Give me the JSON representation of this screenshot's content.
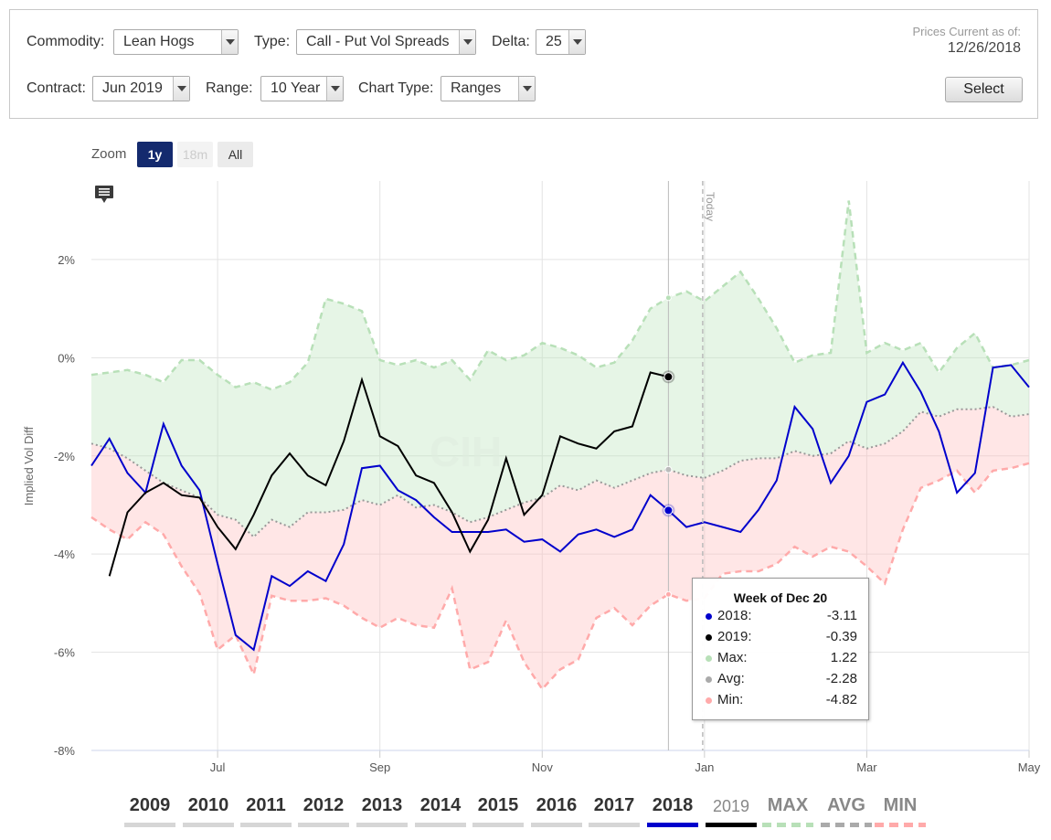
{
  "controls": {
    "commodity_label": "Commodity:",
    "commodity_value": "Lean Hogs",
    "type_label": "Type:",
    "type_value": "Call - Put Vol Spreads",
    "delta_label": "Delta:",
    "delta_value": "25",
    "contract_label": "Contract:",
    "contract_value": "Jun 2019",
    "range_label": "Range:",
    "range_value": "10 Year",
    "charttype_label": "Chart Type:",
    "charttype_value": "Ranges",
    "prices_label": "Prices Current as of:",
    "prices_date": "12/26/2018",
    "select_label": "Select"
  },
  "zoom": {
    "label": "Zoom",
    "options": [
      "1y",
      "18m",
      "All"
    ]
  },
  "chart_data": {
    "type": "line",
    "ylabel": "Implied Vol Diff",
    "ylim": [
      -8,
      3.6
    ],
    "yticks": [
      2,
      0,
      -2,
      -4,
      -6,
      -8
    ],
    "ytick_labels": [
      "2%",
      "0%",
      "-2%",
      "-4%",
      "-6%",
      "-8%"
    ],
    "x_tick_labels": [
      "Jul",
      "Sep",
      "Nov",
      "Jan",
      "Mar",
      "May"
    ],
    "today_label": "Today",
    "grid": true,
    "weeks": 53,
    "week_index_of_ticks": [
      7,
      16,
      25,
      34,
      43,
      52
    ],
    "today_week": 33,
    "bands": {
      "max": [
        -0.35,
        -0.3,
        -0.25,
        -0.35,
        -0.5,
        -0.05,
        -0.05,
        -0.35,
        -0.6,
        -0.5,
        -0.65,
        -0.5,
        -0.1,
        1.2,
        1.1,
        0.95,
        -0.05,
        -0.15,
        -0.05,
        -0.2,
        -0.05,
        -0.45,
        0.15,
        -0.05,
        0.05,
        0.3,
        0.2,
        0.05,
        -0.2,
        -0.1,
        0.35,
        1.0,
        1.22,
        1.35,
        1.15,
        1.45,
        1.75,
        1.2,
        0.6,
        -0.1,
        0.05,
        0.1,
        3.2,
        0.1,
        0.3,
        0.15,
        0.3,
        -0.3,
        0.2,
        0.5,
        -0.2,
        -0.15,
        -0.05
      ],
      "avg": [
        -1.75,
        -1.85,
        -2.05,
        -2.3,
        -2.55,
        -2.7,
        -2.85,
        -3.2,
        -3.3,
        -3.65,
        -3.3,
        -3.45,
        -3.15,
        -3.15,
        -3.1,
        -2.9,
        -3.0,
        -2.8,
        -3.05,
        -3.0,
        -3.15,
        -3.35,
        -3.25,
        -3.1,
        -2.95,
        -2.85,
        -2.6,
        -2.7,
        -2.5,
        -2.65,
        -2.5,
        -2.35,
        -2.28,
        -2.4,
        -2.45,
        -2.3,
        -2.1,
        -2.05,
        -2.05,
        -1.9,
        -2.0,
        -1.95,
        -1.7,
        -1.85,
        -1.75,
        -1.5,
        -1.1,
        -1.2,
        -1.05,
        -1.05,
        -1.0,
        -1.2,
        -1.15
      ],
      "min": [
        -3.25,
        -3.5,
        -3.7,
        -3.35,
        -3.6,
        -4.25,
        -4.8,
        -5.95,
        -5.65,
        -6.45,
        -4.85,
        -4.95,
        -4.95,
        -4.9,
        -5.05,
        -5.3,
        -5.5,
        -5.3,
        -5.45,
        -5.5,
        -4.7,
        -6.35,
        -6.2,
        -5.35,
        -6.2,
        -6.75,
        -6.35,
        -6.15,
        -5.3,
        -5.1,
        -5.45,
        -5.05,
        -4.82,
        -4.95,
        -4.9,
        -4.4,
        -4.35,
        -4.35,
        -4.2,
        -3.85,
        -4.05,
        -3.85,
        -3.95,
        -4.25,
        -4.6,
        -3.5,
        -2.65,
        -2.5,
        -2.3,
        -2.75,
        -2.3,
        -2.25,
        -2.15
      ]
    },
    "series": [
      {
        "name": "2018",
        "color": "#0000cc",
        "values": [
          -2.2,
          -1.65,
          -2.35,
          -2.75,
          -1.35,
          -2.2,
          -2.7,
          -4.2,
          -5.65,
          -5.95,
          -4.45,
          -4.65,
          -4.35,
          -4.55,
          -3.8,
          -2.25,
          -2.2,
          -2.7,
          -2.9,
          -3.25,
          -3.55,
          -3.55,
          -3.55,
          -3.5,
          -3.75,
          -3.7,
          -3.95,
          -3.6,
          -3.5,
          -3.65,
          -3.5,
          -2.8,
          -3.11,
          -3.45,
          -3.35,
          -3.45,
          -3.55,
          -3.1,
          -2.5,
          -1.0,
          -1.45,
          -2.55,
          -2.0,
          -0.9,
          -0.75,
          -0.1,
          -0.7,
          -1.5,
          -2.75,
          -2.35,
          -0.2,
          -0.15,
          -0.6
        ]
      },
      {
        "name": "2019",
        "color": "#000000",
        "values": [
          null,
          -4.45,
          -3.15,
          -2.75,
          -2.55,
          -2.8,
          -2.85,
          -3.45,
          -3.9,
          -3.2,
          -2.4,
          -1.95,
          -2.4,
          -2.6,
          -1.7,
          -0.45,
          -1.6,
          -1.8,
          -2.4,
          -2.55,
          -3.15,
          -3.95,
          -3.3,
          -2.05,
          -3.2,
          -2.8,
          -1.6,
          -1.75,
          -1.85,
          -1.5,
          -1.4,
          -0.3,
          -0.39,
          null,
          null,
          null,
          null,
          null,
          null,
          null,
          null,
          null,
          null,
          null,
          null,
          null,
          null,
          null,
          null,
          null,
          null,
          null,
          null
        ]
      }
    ],
    "tooltip": {
      "title": "Week of Dec 20",
      "rows": [
        {
          "label": "2018:",
          "value": "-3.11",
          "color": "#0000cc"
        },
        {
          "label": "2019:",
          "value": "-0.39",
          "color": "#000000"
        },
        {
          "label": "Max:",
          "value": "1.22",
          "color": "#b8e0b8"
        },
        {
          "label": "Avg:",
          "value": "-2.28",
          "color": "#aaaaaa"
        },
        {
          "label": "Min:",
          "value": "-4.82",
          "color": "#ffaaaa"
        }
      ]
    },
    "legend": {
      "items": [
        {
          "label": "2009",
          "color": "#d6d6d6"
        },
        {
          "label": "2010",
          "color": "#d6d6d6"
        },
        {
          "label": "2011",
          "color": "#d6d6d6"
        },
        {
          "label": "2012",
          "color": "#d6d6d6"
        },
        {
          "label": "2013",
          "color": "#d6d6d6"
        },
        {
          "label": "2014",
          "color": "#d6d6d6"
        },
        {
          "label": "2015",
          "color": "#d6d6d6"
        },
        {
          "label": "2016",
          "color": "#d6d6d6"
        },
        {
          "label": "2017",
          "color": "#d6d6d6"
        },
        {
          "label": "2018",
          "color": "#0000cc"
        },
        {
          "label": "2019",
          "color": "#000000"
        },
        {
          "label": "MAX",
          "color": "#b8e0b8"
        },
        {
          "label": "AVG",
          "color": "#aaaaaa"
        },
        {
          "label": "MIN",
          "color": "#ffaaaa"
        }
      ]
    }
  }
}
